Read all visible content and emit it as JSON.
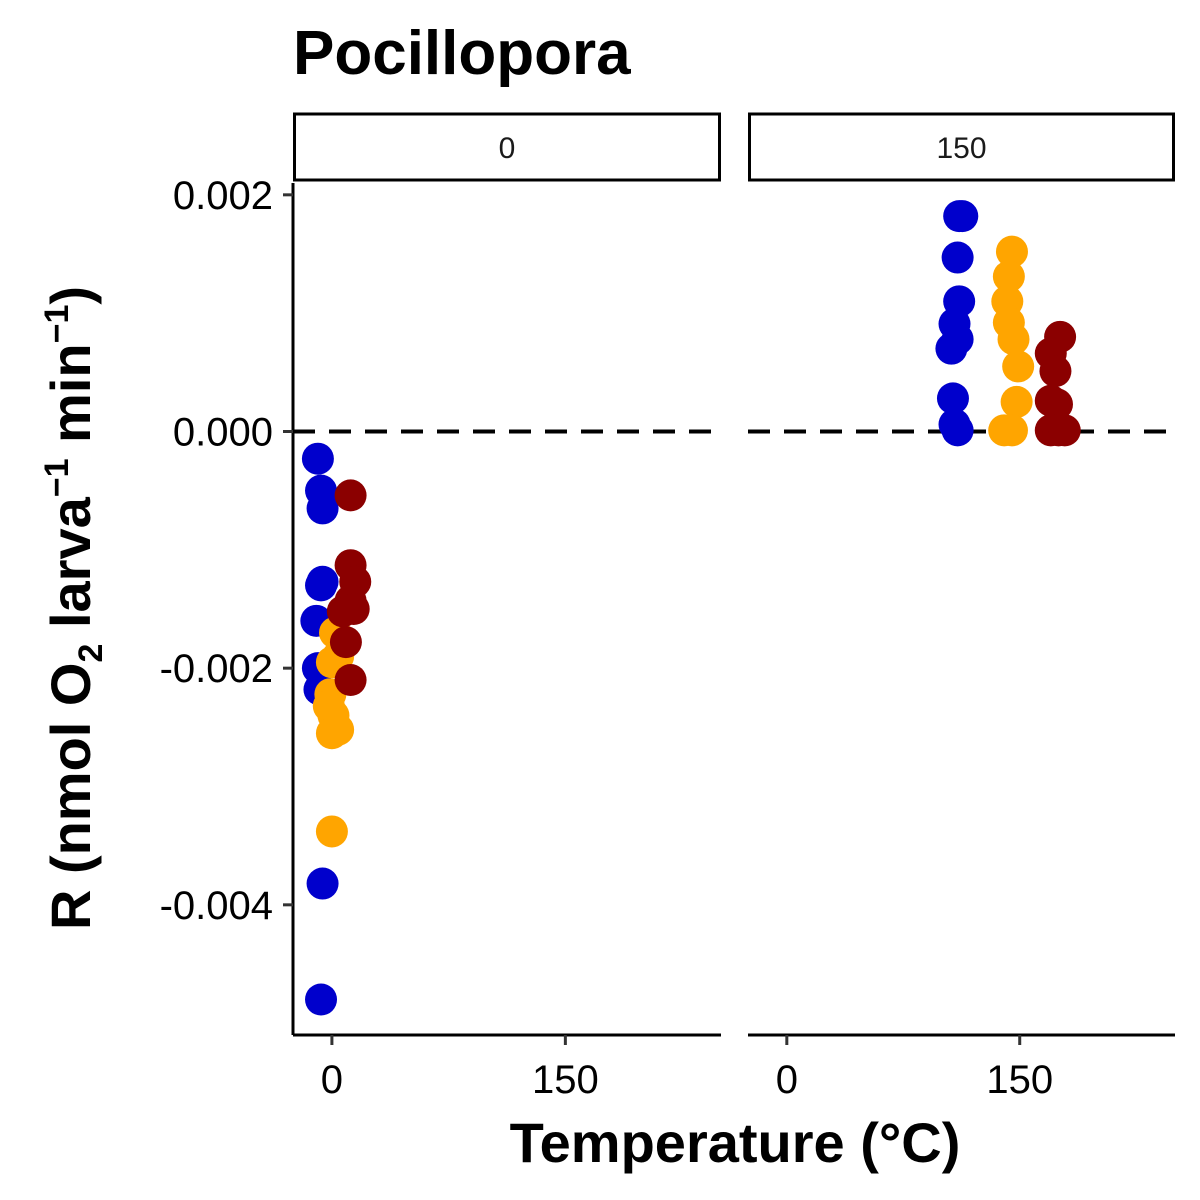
{
  "chart_data": {
    "type": "scatter",
    "title": "Pocillopora",
    "xlabel": "Temperature (°C)",
    "ylabel": {
      "main": "R (nmol O",
      "sub_o2": "2",
      "part_larva": " larva",
      "sup_larva": "−1",
      "part_min": " min",
      "sup_min": "−1",
      "close": ")"
    },
    "ylim": [
      -0.0051,
      0.0021
    ],
    "y_ticks": [
      0.002,
      0.0,
      -0.002,
      -0.004
    ],
    "y_tick_labels": [
      "0.002",
      "0.000",
      "-0.002",
      "-0.004"
    ],
    "xlim": [
      -25,
      250
    ],
    "x_ticks": [
      0,
      150
    ],
    "x_tick_labels": [
      "0",
      "150"
    ],
    "reference_line": {
      "y": 0.0,
      "style": "dashed"
    },
    "legend": "none",
    "colors": {
      "blue": "#0000cc",
      "orange": "#ffa500",
      "darkred": "#8b0000"
    },
    "facets": [
      {
        "label": "0",
        "groups": [
          {
            "color": "#0000cc",
            "points": [
              [
                -9,
                -0.00023
              ],
              [
                -7,
                -0.0005
              ],
              [
                -6,
                -0.00065
              ],
              [
                -6,
                -0.00127
              ],
              [
                -7,
                -0.0013
              ],
              [
                -10,
                -0.0016
              ],
              [
                -9,
                -0.002
              ],
              [
                -8,
                -0.00218
              ],
              [
                -6,
                -0.00382
              ],
              [
                -7,
                -0.0048
              ]
            ]
          },
          {
            "color": "#ffa500",
            "points": [
              [
                2,
                -0.0017
              ],
              [
                4,
                -0.0019
              ],
              [
                0,
                -0.00195
              ],
              [
                -1,
                -0.00222
              ],
              [
                -2,
                -0.00232
              ],
              [
                1,
                -0.0024
              ],
              [
                0,
                -0.00255
              ],
              [
                4,
                -0.00252
              ],
              [
                0,
                -0.00338
              ]
            ]
          },
          {
            "color": "#8b0000",
            "points": [
              [
                12,
                -0.00054
              ],
              [
                12,
                -0.00113
              ],
              [
                15,
                -0.00127
              ],
              [
                12,
                -0.00143
              ],
              [
                7,
                -0.00152
              ],
              [
                14,
                -0.0015
              ],
              [
                9,
                -0.00178
              ],
              [
                12,
                -0.0021
              ]
            ]
          }
        ]
      },
      {
        "label": "150",
        "groups": [
          {
            "color": "#0000cc",
            "points": [
              [
                111,
                0.00182
              ],
              [
                113,
                0.00182
              ],
              [
                110,
                0.00147
              ],
              [
                111,
                0.0011
              ],
              [
                108,
                0.00091
              ],
              [
                110,
                0.00078
              ],
              [
                106,
                0.0007
              ],
              [
                107,
                0.00028
              ],
              [
                108,
                6e-05
              ],
              [
                110,
                1e-05
              ]
            ]
          },
          {
            "color": "#ffa500",
            "points": [
              [
                145,
                0.00152
              ],
              [
                143,
                0.00131
              ],
              [
                142,
                0.0011
              ],
              [
                143,
                0.00092
              ],
              [
                146,
                0.00078
              ],
              [
                149,
                0.00055
              ],
              [
                148,
                0.00025
              ],
              [
                140,
                1e-05
              ],
              [
                145,
                1e-05
              ]
            ]
          },
          {
            "color": "#8b0000",
            "points": [
              [
                176,
                0.0008
              ],
              [
                170,
                0.00066
              ],
              [
                173,
                0.00051
              ],
              [
                170,
                0.00026
              ],
              [
                174,
                0.00023
              ],
              [
                170,
                1e-05
              ],
              [
                175,
                1e-05
              ],
              [
                179,
                1e-05
              ]
            ]
          }
        ]
      }
    ]
  }
}
